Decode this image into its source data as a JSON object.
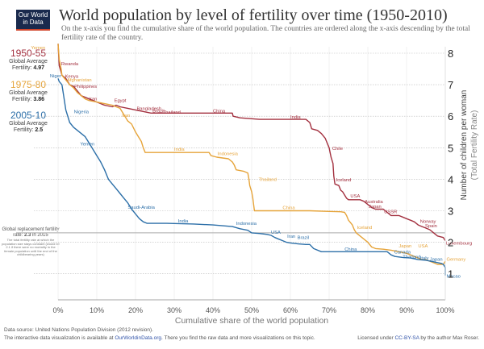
{
  "logo": {
    "line1": "Our World",
    "line2": "in Data"
  },
  "title": "World population by level of fertility over time (1950-2010)",
  "subtitle": "On the x-axis you find the cumulative share of the world population. The countries are ordered along the x-axis descending by the total fertility rate of the country.",
  "legend": [
    {
      "period": "1950-55",
      "label1": "Global Average",
      "label2": "Fertility:",
      "value": "4.97",
      "color": "#a3303f"
    },
    {
      "period": "1975-80",
      "label1": "Global Average",
      "label2": "Fertility:",
      "value": "3.86",
      "color": "#e6a43a"
    },
    {
      "period": "2005-10",
      "label1": "Global Average",
      "label2": "Fertility:",
      "value": "2.5",
      "color": "#2c6fa8"
    }
  ],
  "replacement": {
    "title": "Global replacement fertility",
    "rate_prefix": "rate:",
    "rate_value": "2.3",
    "rate_suffix": "in 2015",
    "body": "The total fertility rate at which the population size stays constant (would be 2.1 if there were no mortality in the female population until the end of the childbearing years)"
  },
  "footer": {
    "source": "Data source: United Nations Population Division (2012 revision).",
    "interactive_prefix": "The interactive data visualization is available at",
    "interactive_link": "OurWorldinData.org",
    "interactive_suffix": ". There you find the raw data and more visualizations on this topic.",
    "license_prefix": "Licensed under",
    "license_link": "CC-BY-SA",
    "license_suffix": "by the author Max Roser."
  },
  "chart_data": {
    "type": "line",
    "title": "World population by level of fertility over time (1950-2010)",
    "xlabel": "Cumulative share of the world population",
    "ylabel": "Number of children per woman",
    "ylabel2": "(Total Fertility Rate)",
    "xlim": [
      0,
      100
    ],
    "ylim": [
      0.5,
      8.3
    ],
    "x_ticks": [
      0,
      10,
      20,
      30,
      40,
      50,
      60,
      70,
      80,
      90,
      100
    ],
    "x_tick_labels": [
      "0%",
      "10%",
      "20%",
      "30%",
      "40%",
      "50%",
      "60%",
      "70%",
      "80%",
      "90%",
      "100%"
    ],
    "y_ticks": [
      1,
      2,
      3,
      4,
      5,
      6,
      7,
      8
    ],
    "y_tick_labels": [
      "1",
      "2",
      "3",
      "4",
      "5",
      "6",
      "7",
      "8"
    ],
    "grid": true,
    "replacement_line": 2.3,
    "series": [
      {
        "name": "1950-55",
        "color": "#a3303f",
        "points": [
          [
            0,
            8.3
          ],
          [
            0.3,
            7.6
          ],
          [
            0.8,
            7.4
          ],
          [
            1,
            7.3
          ],
          [
            2,
            7.2
          ],
          [
            3,
            7.0
          ],
          [
            4,
            6.95
          ],
          [
            5,
            6.8
          ],
          [
            6,
            6.65
          ],
          [
            7,
            6.6
          ],
          [
            8,
            6.55
          ],
          [
            9,
            6.5
          ],
          [
            10,
            6.45
          ],
          [
            12,
            6.35
          ],
          [
            14,
            6.3
          ],
          [
            15,
            6.35
          ],
          [
            16,
            6.3
          ],
          [
            18,
            6.25
          ],
          [
            20,
            6.2
          ],
          [
            24,
            6.1
          ],
          [
            30,
            6.1
          ],
          [
            36,
            6.1
          ],
          [
            45,
            6.1
          ],
          [
            45.2,
            6.0
          ],
          [
            47,
            5.95
          ],
          [
            52,
            5.9
          ],
          [
            58,
            5.9
          ],
          [
            64,
            5.9
          ],
          [
            65,
            5.8
          ],
          [
            65.5,
            5.6
          ],
          [
            67,
            5.55
          ],
          [
            68,
            5.45
          ],
          [
            69,
            5.3
          ],
          [
            70,
            5.0
          ],
          [
            70.5,
            4.7
          ],
          [
            71,
            4.5
          ],
          [
            71.2,
            4.1
          ],
          [
            71.5,
            3.85
          ],
          [
            72.5,
            3.8
          ],
          [
            73,
            3.65
          ],
          [
            73.5,
            3.6
          ],
          [
            74,
            3.5
          ],
          [
            74.5,
            3.4
          ],
          [
            75,
            3.35
          ],
          [
            78,
            3.35
          ],
          [
            79,
            3.3
          ],
          [
            80,
            3.2
          ],
          [
            81,
            3.1
          ],
          [
            82,
            3.05
          ],
          [
            84,
            3.05
          ],
          [
            85,
            2.95
          ],
          [
            86,
            2.85
          ],
          [
            88,
            2.85
          ],
          [
            89,
            2.8
          ],
          [
            90,
            2.75
          ],
          [
            91,
            2.7
          ],
          [
            92,
            2.65
          ],
          [
            93,
            2.55
          ],
          [
            94,
            2.5
          ],
          [
            95,
            2.45
          ],
          [
            96,
            2.4
          ],
          [
            97,
            2.3
          ],
          [
            98,
            2.2
          ],
          [
            99.5,
            2.15
          ],
          [
            100,
            2.05
          ]
        ],
        "labels": [
          {
            "text": "Rwanda",
            "x": 0.8,
            "y": 7.62
          },
          {
            "text": "Kenya",
            "x": 1.8,
            "y": 7.22
          },
          {
            "text": "Philippines",
            "x": 4.2,
            "y": 6.9
          },
          {
            "text": "Iran",
            "x": 8,
            "y": 6.5
          },
          {
            "text": "Egypt",
            "x": 14.5,
            "y": 6.45
          },
          {
            "text": "Bangladesh",
            "x": 20.3,
            "y": 6.2
          },
          {
            "text": "Brazil",
            "x": 24.4,
            "y": 6.12
          },
          {
            "text": "Thailand",
            "x": 27,
            "y": 6.08
          },
          {
            "text": "China",
            "x": 40,
            "y": 6.12
          },
          {
            "text": "India",
            "x": 60,
            "y": 5.93
          },
          {
            "text": "Chile",
            "x": 70.8,
            "y": 4.93
          },
          {
            "text": "Iceland",
            "x": 71.8,
            "y": 3.93
          },
          {
            "text": "USA",
            "x": 75.5,
            "y": 3.42
          },
          {
            "text": "Australia",
            "x": 79.2,
            "y": 3.24
          },
          {
            "text": "Japan",
            "x": 80.2,
            "y": 3.09
          },
          {
            "text": "USSR",
            "x": 84.2,
            "y": 2.92
          },
          {
            "text": "Norway",
            "x": 93.5,
            "y": 2.62
          },
          {
            "text": "Spain",
            "x": 94.8,
            "y": 2.48
          },
          {
            "text": "Luxembourg",
            "x": 100.2,
            "y": 1.92
          }
        ]
      },
      {
        "name": "1975-80",
        "color": "#e6a43a",
        "points": [
          [
            0,
            8.3
          ],
          [
            0.3,
            7.8
          ],
          [
            0.8,
            7.5
          ],
          [
            1,
            7.3
          ],
          [
            2,
            7.15
          ],
          [
            3,
            7.0
          ],
          [
            4,
            6.9
          ],
          [
            5,
            6.75
          ],
          [
            6,
            6.65
          ],
          [
            7,
            6.55
          ],
          [
            8,
            6.5
          ],
          [
            10,
            6.45
          ],
          [
            12,
            6.4
          ],
          [
            14,
            6.35
          ],
          [
            15,
            6.3
          ],
          [
            16,
            6.25
          ],
          [
            17,
            6.05
          ],
          [
            18,
            5.85
          ],
          [
            19,
            5.75
          ],
          [
            20,
            5.5
          ],
          [
            21,
            5.3
          ],
          [
            21.5,
            5.2
          ],
          [
            22,
            5.0
          ],
          [
            22.5,
            4.85
          ],
          [
            28,
            4.85
          ],
          [
            34,
            4.85
          ],
          [
            39,
            4.85
          ],
          [
            39.5,
            4.75
          ],
          [
            41,
            4.7
          ],
          [
            44,
            4.65
          ],
          [
            45,
            4.55
          ],
          [
            45.5,
            4.45
          ],
          [
            46,
            4.3
          ],
          [
            48,
            4.25
          ],
          [
            49,
            4.2
          ],
          [
            49.3,
            4.0
          ],
          [
            49.5,
            3.8
          ],
          [
            50,
            3.6
          ],
          [
            50.3,
            3.4
          ],
          [
            50.5,
            3.2
          ],
          [
            50.7,
            3.0
          ],
          [
            55,
            3.0
          ],
          [
            60,
            3.0
          ],
          [
            65,
            3.0
          ],
          [
            70,
            2.98
          ],
          [
            73,
            2.97
          ],
          [
            74,
            2.95
          ],
          [
            74.5,
            2.85
          ],
          [
            75,
            2.7
          ],
          [
            76,
            2.55
          ],
          [
            76.5,
            2.4
          ],
          [
            77,
            2.3
          ],
          [
            78,
            2.2
          ],
          [
            79,
            2.1
          ],
          [
            80,
            2.0
          ],
          [
            81,
            1.85
          ],
          [
            82,
            1.8
          ],
          [
            84,
            1.78
          ],
          [
            86,
            1.75
          ],
          [
            88,
            1.7
          ],
          [
            90,
            1.65
          ],
          [
            91,
            1.6
          ],
          [
            92,
            1.55
          ],
          [
            93,
            1.5
          ],
          [
            94,
            1.45
          ],
          [
            95,
            1.45
          ],
          [
            96,
            1.4
          ],
          [
            97,
            1.35
          ],
          [
            98,
            1.3
          ],
          [
            99.5,
            1.3
          ],
          [
            100,
            1.4
          ]
        ],
        "labels": [
          {
            "text": "Yemen",
            "x": -7,
            "y": 8.13
          },
          {
            "text": "Afghanistan",
            "x": 2.3,
            "y": 7.1
          },
          {
            "text": "Iran",
            "x": 16.5,
            "y": 5.98
          },
          {
            "text": "India",
            "x": 30,
            "y": 4.9
          },
          {
            "text": "Indonesia",
            "x": 41.2,
            "y": 4.76
          },
          {
            "text": "Thailand",
            "x": 51.8,
            "y": 3.95
          },
          {
            "text": "China",
            "x": 58,
            "y": 3.05
          },
          {
            "text": "Iceland",
            "x": 77.2,
            "y": 2.42
          },
          {
            "text": "Japan",
            "x": 88,
            "y": 1.83
          },
          {
            "text": "USA",
            "x": 93,
            "y": 1.83
          },
          {
            "text": "Germany",
            "x": 100.3,
            "y": 1.42
          }
        ]
      },
      {
        "name": "2005-10",
        "color": "#2c6fa8",
        "points": [
          [
            0,
            7.2
          ],
          [
            0.3,
            7.1
          ],
          [
            1,
            7.0
          ],
          [
            1.5,
            6.6
          ],
          [
            2,
            6.2
          ],
          [
            3,
            5.8
          ],
          [
            4,
            5.65
          ],
          [
            5,
            5.55
          ],
          [
            6,
            5.45
          ],
          [
            7,
            5.35
          ],
          [
            8,
            5.15
          ],
          [
            9,
            4.95
          ],
          [
            10,
            4.75
          ],
          [
            11,
            4.55
          ],
          [
            12,
            4.3
          ],
          [
            13,
            4.0
          ],
          [
            14,
            3.85
          ],
          [
            15,
            3.7
          ],
          [
            16,
            3.55
          ],
          [
            17,
            3.4
          ],
          [
            18,
            3.25
          ],
          [
            19,
            3.05
          ],
          [
            20,
            2.9
          ],
          [
            21,
            2.75
          ],
          [
            22,
            2.65
          ],
          [
            23,
            2.6
          ],
          [
            28,
            2.6
          ],
          [
            35,
            2.58
          ],
          [
            40,
            2.55
          ],
          [
            45,
            2.5
          ],
          [
            47,
            2.43
          ],
          [
            49,
            2.38
          ],
          [
            50,
            2.3
          ],
          [
            52,
            2.28
          ],
          [
            54,
            2.25
          ],
          [
            55,
            2.22
          ],
          [
            56,
            2.15
          ],
          [
            57,
            2.1
          ],
          [
            58,
            2.05
          ],
          [
            59,
            2.0
          ],
          [
            60,
            1.98
          ],
          [
            62,
            1.95
          ],
          [
            64,
            1.93
          ],
          [
            65,
            1.93
          ],
          [
            66,
            1.8
          ],
          [
            68,
            1.7
          ],
          [
            75,
            1.7
          ],
          [
            85,
            1.7
          ],
          [
            86,
            1.6
          ],
          [
            87,
            1.55
          ],
          [
            89,
            1.52
          ],
          [
            91,
            1.5
          ],
          [
            93,
            1.45
          ],
          [
            95,
            1.43
          ],
          [
            97,
            1.38
          ],
          [
            99,
            1.33
          ],
          [
            99.5,
            1.3
          ],
          [
            100,
            1.2
          ],
          [
            100,
            0.95
          ]
        ],
        "labels": [
          {
            "text": "Niger",
            "x": -2.1,
            "y": 7.23
          },
          {
            "text": "Nigeria",
            "x": 4.1,
            "y": 6.1
          },
          {
            "text": "Yemen",
            "x": 5.7,
            "y": 5.07
          },
          {
            "text": "Saudi-Arabia",
            "x": 18,
            "y": 3.07
          },
          {
            "text": "India",
            "x": 31,
            "y": 2.63
          },
          {
            "text": "Indonesia",
            "x": 46,
            "y": 2.55
          },
          {
            "text": "USA",
            "x": 55,
            "y": 2.27
          },
          {
            "text": "Iran",
            "x": 59.2,
            "y": 2.14
          },
          {
            "text": "Brazil",
            "x": 61.8,
            "y": 2.1
          },
          {
            "text": "China",
            "x": 74,
            "y": 1.74
          },
          {
            "text": "Canada",
            "x": 86.8,
            "y": 1.65
          },
          {
            "text": "Thailand",
            "x": 89,
            "y": 1.49
          },
          {
            "text": "Italy",
            "x": 93.5,
            "y": 1.45
          },
          {
            "text": "Japan",
            "x": 96,
            "y": 1.41
          },
          {
            "text": "Macao",
            "x": 100.3,
            "y": 0.88
          }
        ]
      }
    ]
  }
}
